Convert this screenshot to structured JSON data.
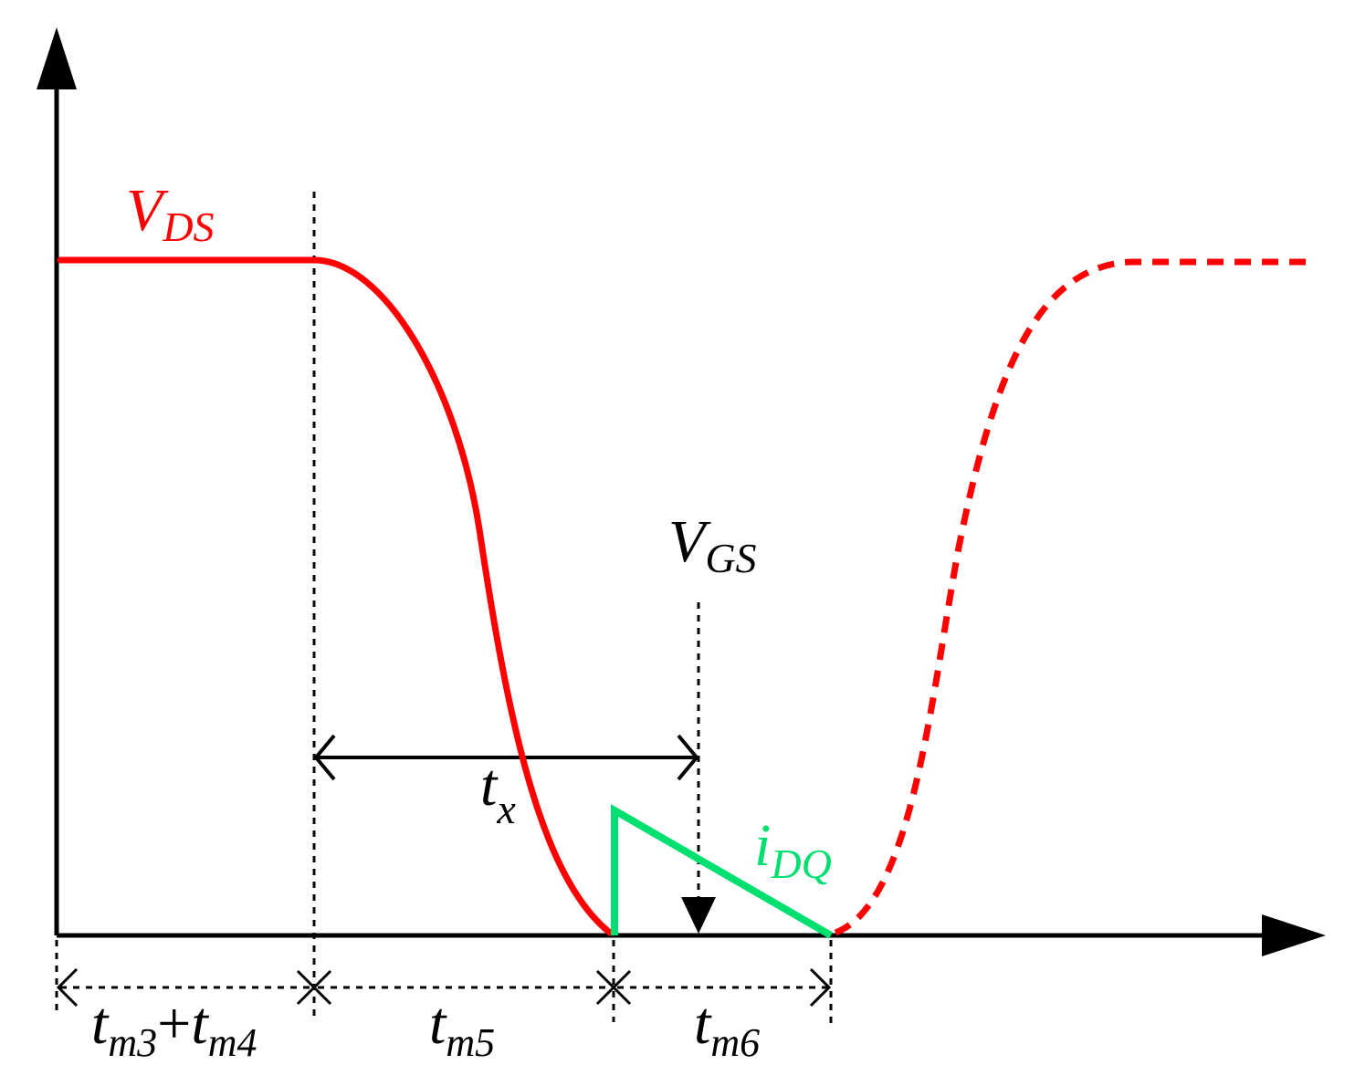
{
  "colors": {
    "vds": "#ff0000",
    "idq": "#00e070",
    "axis": "#000000",
    "guide": "#000000"
  },
  "labels": {
    "vds": {
      "main": "V",
      "sub": "DS"
    },
    "vgs": {
      "main": "V",
      "sub": "GS"
    },
    "idq": {
      "main": "i",
      "sub": "DQ"
    },
    "tx": {
      "main": "t",
      "sub": "x"
    },
    "tm34": {
      "a_main": "t",
      "a_sub": "m3",
      "plus": "+",
      "b_main": "t",
      "b_sub": "m4"
    },
    "tm5": {
      "main": "t",
      "sub": "m5"
    },
    "tm6": {
      "main": "t",
      "sub": "m6"
    }
  }
}
